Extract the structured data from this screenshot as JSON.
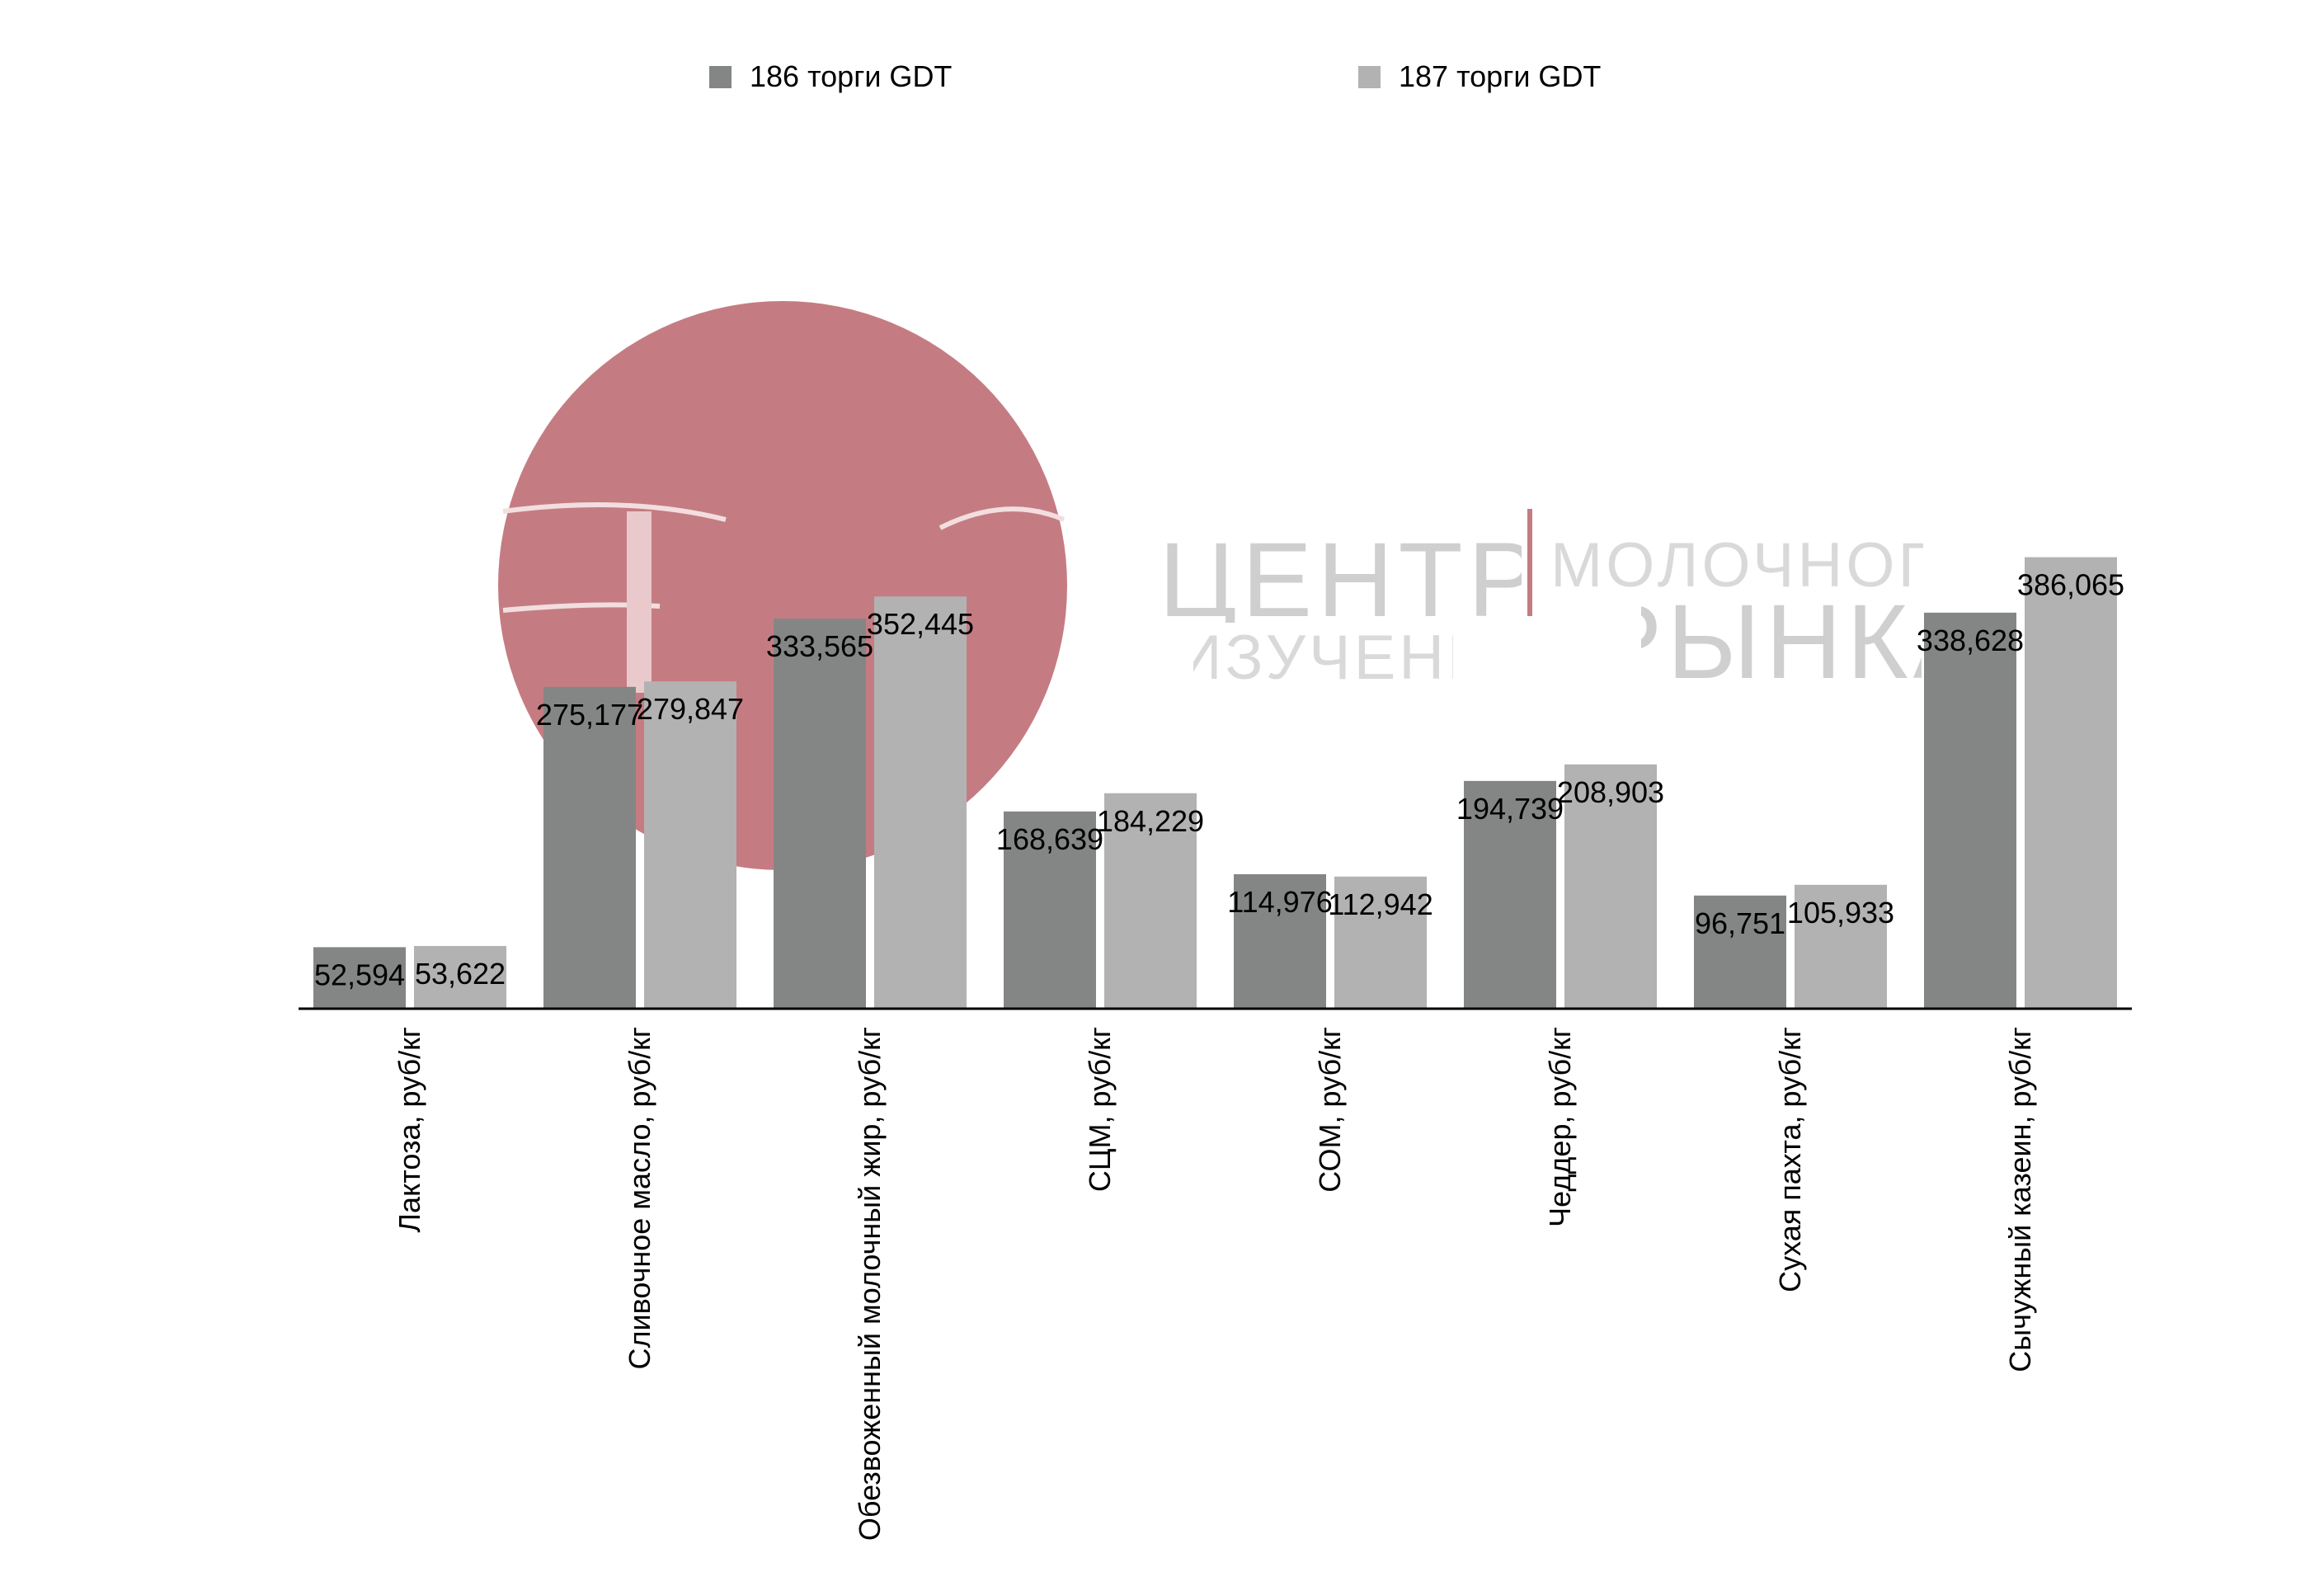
{
  "chart_data": {
    "type": "bar",
    "categories": [
      "Лактоза, руб/кг",
      "Сливочное масло, руб/кг",
      "Обезвоженный молочный жир, руб/кг",
      "СЦМ, руб/кг",
      "СОМ, руб/кг",
      "Чеддер, руб/кг",
      "Сухая пахта, руб/кг",
      "Сычужный казеин, руб/кг"
    ],
    "series": [
      {
        "name": "186 торги GDT",
        "color": "#848685",
        "values": [
          52.594,
          275.177,
          333.565,
          168.639,
          114.976,
          194.739,
          96.751,
          338.628
        ],
        "labels": [
          "52,594",
          "275,177",
          "333,565",
          "168,639",
          "114,976",
          "194,739",
          "96,751",
          "338,628"
        ]
      },
      {
        "name": "187 торги GDT",
        "color": "#b2b2b2",
        "values": [
          53.622,
          279.847,
          352.445,
          184.229,
          112.942,
          208.903,
          105.933,
          386.065
        ],
        "labels": [
          "53,622",
          "279,847",
          "352,445",
          "184,229",
          "112,942",
          "208,903",
          "105,933",
          "386,065"
        ]
      }
    ],
    "ylim": [
      0,
      400
    ],
    "legend_position": "top",
    "grid": false
  },
  "watermark": {
    "line1_left": "ЦЕНТР",
    "line1_right": "МОЛОЧНОГО",
    "line2_left": "ИЗУЧЕНИЯ",
    "line2_right": "РЫНКА",
    "logo_color": "#c47c82"
  }
}
